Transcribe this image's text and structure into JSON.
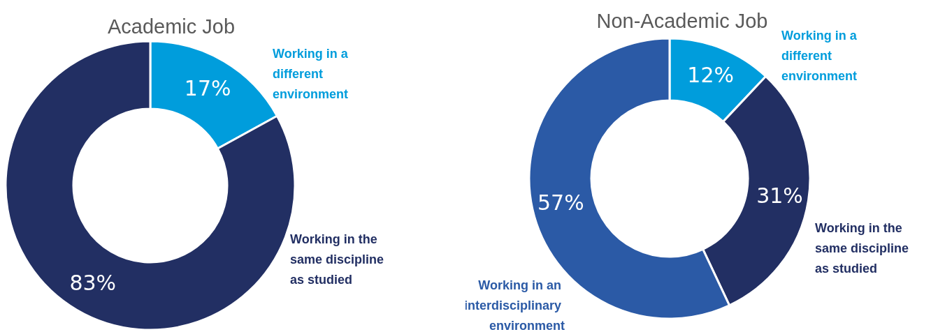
{
  "chart_data": [
    {
      "type": "donut",
      "title": "Academic Job",
      "categories": [
        "Working in a different environment",
        "Working in the same discipline as studied"
      ],
      "values": [
        17,
        83
      ],
      "colors": [
        "#009ddc",
        "#222f63"
      ],
      "value_labels": [
        "17%",
        "83%"
      ]
    },
    {
      "type": "donut",
      "title": "Non-Academic Job",
      "categories": [
        "Working in a different environment",
        "Working in the same discipline as studied",
        "Working in an interdisciplinary environment"
      ],
      "values": [
        12,
        31,
        57
      ],
      "colors": [
        "#009ddc",
        "#222f63",
        "#2b5aa6"
      ],
      "value_labels": [
        "12%",
        "31%",
        "57%"
      ]
    }
  ]
}
